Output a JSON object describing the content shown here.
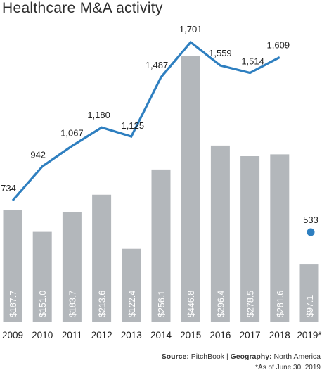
{
  "chart_data": {
    "type": "bar",
    "title": "Healthcare M&A activity",
    "categories": [
      "2009",
      "2010",
      "2011",
      "2012",
      "2013",
      "2014",
      "2015",
      "2016",
      "2017",
      "2018",
      "2019*"
    ],
    "series": [
      {
        "kind": "bar",
        "values": [
          187.7,
          151.0,
          183.7,
          213.6,
          122.4,
          256.1,
          446.8,
          296.4,
          278.5,
          281.6,
          97.1
        ],
        "labels": [
          "$187.7",
          "$151.0",
          "$183.7",
          "$213.6",
          "$122.4",
          "$256.1",
          "$446.8",
          "$296.4",
          "$278.5",
          "$281.6",
          "$97.1"
        ]
      },
      {
        "kind": "line",
        "values": [
          734,
          942,
          1067,
          1180,
          1125,
          1487,
          1701,
          1559,
          1514,
          1609,
          533
        ],
        "labels": [
          "734",
          "942",
          "1,067",
          "1,180",
          "1,125",
          "1,487",
          "1,701",
          "1,559",
          "1,514",
          "1,609",
          "533"
        ]
      }
    ],
    "colors": {
      "bar": "#b3b7bb",
      "line": "#2e7fc0",
      "bar_label": "#ffffff"
    },
    "grid": false,
    "legend": "none"
  },
  "footer": {
    "source_label": "Source:",
    "source_value": "PitchBook",
    "separator": "|",
    "geography_label": "Geography:",
    "geography_value": "North America",
    "note": "*As of June 30, 2019"
  }
}
